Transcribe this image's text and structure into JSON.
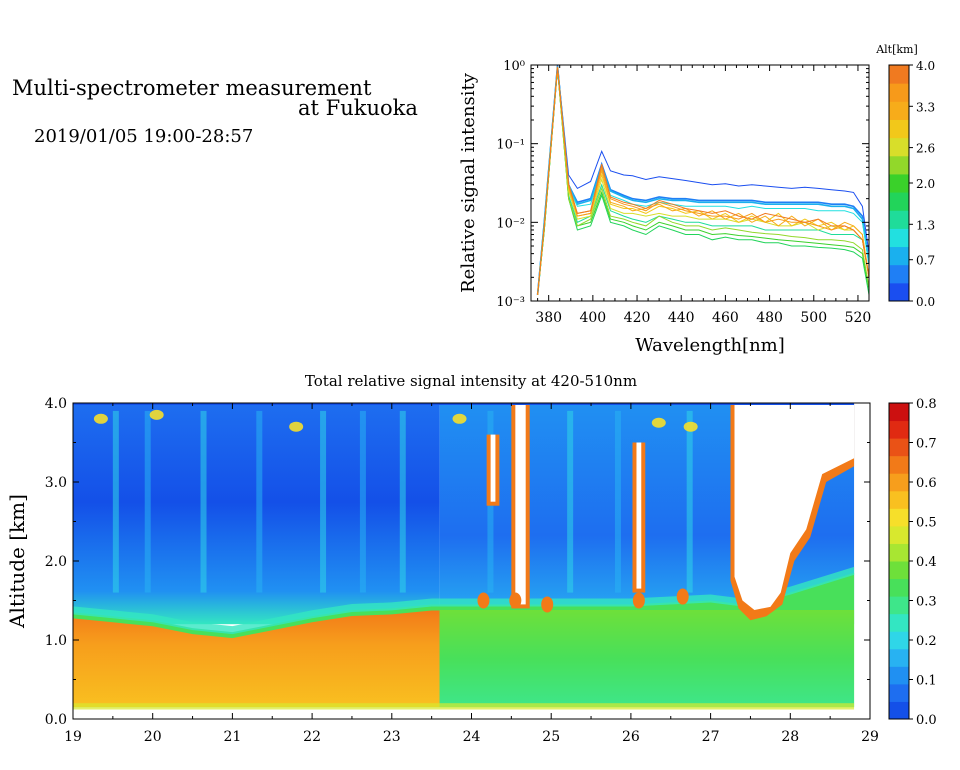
{
  "header": {
    "title_line1": "Multi-spectrometer measurement",
    "title_line2": "at Fukuoka",
    "datetime": "2019/01/05 19:00-28:57"
  },
  "colors": {
    "alt_scale": [
      "#1a4ef0",
      "#1f7ff5",
      "#1ab0ee",
      "#22e0e0",
      "#1fdc9a",
      "#22d45a",
      "#3ad12a",
      "#92d82a",
      "#d8de2a",
      "#f2c81a",
      "#f7ac1a",
      "#f79a1a",
      "#f07a20"
    ],
    "intensity_scale": [
      "#1450e8",
      "#1e6ef0",
      "#2090f2",
      "#28b2f2",
      "#2fd6e8",
      "#33e6c2",
      "#3ee68a",
      "#48e05a",
      "#6ee03a",
      "#a8e632",
      "#d8e82e",
      "#f6df2a",
      "#f9c020",
      "#f79e1c",
      "#f27a18",
      "#ea5216",
      "#e02a12",
      "#cc1010"
    ]
  },
  "chart_data": [
    {
      "type": "line",
      "xlabel": "Wavelength[nm]",
      "ylabel": "Relative signal intensity",
      "xlim": [
        372,
        525
      ],
      "ylim": [
        0.001,
        1
      ],
      "yscale": "log",
      "xticks": [
        380,
        400,
        420,
        440,
        460,
        480,
        500,
        520
      ],
      "yticks": [
        0.001,
        0.01,
        0.1,
        1
      ],
      "ytick_labels": [
        "10⁻³",
        "10⁻²",
        "10⁻¹",
        "10⁰"
      ],
      "x": [
        375,
        378,
        384,
        389,
        393,
        399,
        404,
        408,
        414,
        418,
        424,
        430,
        436,
        442,
        448,
        454,
        460,
        466,
        472,
        478,
        484,
        490,
        496,
        502,
        508,
        514,
        518,
        522,
        525
      ],
      "series": [
        {
          "color": "#1a4ef0",
          "values": [
            0.0012,
            0.01,
            1.0,
            0.04,
            0.027,
            0.033,
            0.08,
            0.045,
            0.04,
            0.039,
            0.035,
            0.038,
            0.036,
            0.034,
            0.032,
            0.03,
            0.031,
            0.029,
            0.03,
            0.029,
            0.028,
            0.027,
            0.028,
            0.027,
            0.026,
            0.025,
            0.024,
            0.016,
            0.004
          ]
        },
        {
          "color": "#1f7ff5",
          "values": [
            0.0012,
            0.01,
            0.98,
            0.03,
            0.018,
            0.02,
            0.055,
            0.026,
            0.022,
            0.02,
            0.019,
            0.021,
            0.02,
            0.02,
            0.019,
            0.019,
            0.019,
            0.019,
            0.019,
            0.018,
            0.018,
            0.018,
            0.018,
            0.018,
            0.017,
            0.017,
            0.016,
            0.012,
            0.003
          ]
        },
        {
          "color": "#1ab0ee",
          "values": [
            0.0012,
            0.01,
            0.96,
            0.03,
            0.017,
            0.019,
            0.052,
            0.025,
            0.021,
            0.019,
            0.018,
            0.02,
            0.019,
            0.019,
            0.018,
            0.018,
            0.018,
            0.018,
            0.018,
            0.017,
            0.017,
            0.017,
            0.017,
            0.017,
            0.016,
            0.016,
            0.015,
            0.011,
            0.003
          ]
        },
        {
          "color": "#22e0e0",
          "values": [
            0.0012,
            0.009,
            0.95,
            0.028,
            0.016,
            0.017,
            0.048,
            0.022,
            0.019,
            0.017,
            0.016,
            0.018,
            0.017,
            0.016,
            0.016,
            0.016,
            0.016,
            0.015,
            0.016,
            0.015,
            0.015,
            0.015,
            0.015,
            0.014,
            0.014,
            0.014,
            0.013,
            0.01,
            0.003
          ]
        },
        {
          "color": "#1fdc9a",
          "values": [
            0.0012,
            0.008,
            0.93,
            0.022,
            0.01,
            0.012,
            0.03,
            0.014,
            0.012,
            0.011,
            0.01,
            0.012,
            0.011,
            0.01,
            0.01,
            0.009,
            0.009,
            0.009,
            0.009,
            0.008,
            0.008,
            0.008,
            0.008,
            0.008,
            0.007,
            0.007,
            0.007,
            0.006,
            0.002
          ]
        },
        {
          "color": "#22d45a",
          "values": [
            0.0012,
            0.008,
            0.92,
            0.02,
            0.008,
            0.009,
            0.022,
            0.01,
            0.009,
            0.008,
            0.007,
            0.009,
            0.008,
            0.007,
            0.007,
            0.006,
            0.0065,
            0.006,
            0.006,
            0.0055,
            0.0055,
            0.005,
            0.005,
            0.0048,
            0.0047,
            0.0045,
            0.0042,
            0.0035,
            0.0012
          ]
        },
        {
          "color": "#3ad12a",
          "values": [
            0.0012,
            0.008,
            0.92,
            0.02,
            0.009,
            0.01,
            0.024,
            0.011,
            0.01,
            0.009,
            0.008,
            0.01,
            0.009,
            0.008,
            0.008,
            0.007,
            0.0072,
            0.0068,
            0.0066,
            0.0063,
            0.006,
            0.0058,
            0.0056,
            0.0054,
            0.0052,
            0.005,
            0.0048,
            0.004,
            0.0014
          ]
        },
        {
          "color": "#92d82a",
          "values": [
            0.0012,
            0.008,
            0.92,
            0.02,
            0.009,
            0.011,
            0.027,
            0.012,
            0.011,
            0.01,
            0.009,
            0.012,
            0.01,
            0.009,
            0.009,
            0.008,
            0.0085,
            0.008,
            0.0075,
            0.0072,
            0.007,
            0.0066,
            0.0064,
            0.006,
            0.006,
            0.0058,
            0.0055,
            0.0045,
            0.0015
          ]
        },
        {
          "color": "#d8de2a",
          "values": [
            0.0012,
            0.009,
            0.93,
            0.025,
            0.011,
            0.012,
            0.035,
            0.015,
            0.013,
            0.013,
            0.012,
            0.013,
            0.012,
            0.012,
            0.011,
            0.011,
            0.011,
            0.01,
            0.011,
            0.01,
            0.009,
            0.009,
            0.01,
            0.008,
            0.009,
            0.008,
            0.008,
            0.006,
            0.002
          ]
        },
        {
          "color": "#f2c81a",
          "values": [
            0.0012,
            0.009,
            0.94,
            0.027,
            0.012,
            0.013,
            0.04,
            0.017,
            0.015,
            0.015,
            0.013,
            0.016,
            0.015,
            0.013,
            0.014,
            0.011,
            0.013,
            0.01,
            0.012,
            0.01,
            0.013,
            0.009,
            0.011,
            0.009,
            0.01,
            0.008,
            0.009,
            0.007,
            0.002
          ]
        },
        {
          "color": "#f7ac1a",
          "values": [
            0.0012,
            0.009,
            0.94,
            0.028,
            0.013,
            0.014,
            0.045,
            0.018,
            0.016,
            0.014,
            0.015,
            0.017,
            0.014,
            0.015,
            0.012,
            0.014,
            0.011,
            0.013,
            0.01,
            0.012,
            0.009,
            0.012,
            0.009,
            0.011,
            0.008,
            0.01,
            0.009,
            0.007,
            0.002
          ]
        },
        {
          "color": "#f79a1a",
          "values": [
            0.0012,
            0.009,
            0.95,
            0.03,
            0.012,
            0.013,
            0.05,
            0.02,
            0.017,
            0.016,
            0.014,
            0.018,
            0.016,
            0.014,
            0.013,
            0.012,
            0.012,
            0.011,
            0.013,
            0.01,
            0.011,
            0.01,
            0.01,
            0.009,
            0.008,
            0.009,
            0.008,
            0.006,
            0.002
          ]
        },
        {
          "color": "#f07a20",
          "values": [
            0.0012,
            0.009,
            0.95,
            0.031,
            0.013,
            0.014,
            0.055,
            0.021,
            0.018,
            0.017,
            0.015,
            0.019,
            0.017,
            0.015,
            0.014,
            0.013,
            0.014,
            0.012,
            0.011,
            0.013,
            0.012,
            0.011,
            0.01,
            0.011,
            0.009,
            0.009,
            0.008,
            0.006,
            0.002
          ]
        }
      ],
      "colorbar": {
        "label": "Alt[km]",
        "ticks": [
          0.0,
          0.7,
          1.3,
          2.0,
          2.6,
          3.3,
          4.0
        ],
        "tick_labels": [
          "0.0",
          "0.7",
          "1.3",
          "2.0",
          "2.6",
          "3.3",
          "4.0"
        ]
      }
    },
    {
      "type": "heatmap",
      "title": "Total relative signal intensity at 420-510nm",
      "ylabel": "Altitude [km]",
      "xlim": [
        19,
        29
      ],
      "ylim": [
        0,
        4
      ],
      "xticks": [
        19,
        20,
        21,
        22,
        23,
        24,
        25,
        26,
        27,
        28,
        29
      ],
      "yticks": [
        0.0,
        1.0,
        2.0,
        3.0,
        4.0
      ],
      "ytick_labels": [
        "0.0",
        "1.0",
        "2.0",
        "3.0",
        "4.0"
      ],
      "boundary_layer": {
        "x": [
          19.0,
          19.5,
          20.0,
          20.5,
          21.0,
          21.5,
          22.0,
          22.5,
          23.0,
          23.5,
          24.0,
          25.0,
          26.0,
          27.0,
          27.4,
          28.0,
          28.8
        ],
        "top_km": [
          1.35,
          1.3,
          1.25,
          1.15,
          1.1,
          1.2,
          1.3,
          1.38,
          1.4,
          1.45,
          1.45,
          1.45,
          1.45,
          1.5,
          1.45,
          1.6,
          1.85
        ]
      },
      "segments": [
        {
          "from": 19.0,
          "to": 23.6,
          "lower_value": 0.55,
          "upper_value": 0.08
        },
        {
          "from": 23.6,
          "to": 27.3,
          "lower_value": 0.3,
          "upper_value": 0.12
        },
        {
          "from": 27.3,
          "to": 28.8,
          "lower_value": 0.28,
          "upper_value": 0.2
        }
      ],
      "colorbar": {
        "ticks": [
          0.0,
          0.1,
          0.2,
          0.3,
          0.4,
          0.5,
          0.6,
          0.7,
          0.8
        ],
        "tick_labels": [
          "0.0",
          "0.1",
          "0.2",
          "0.3",
          "0.4",
          "0.5",
          "0.6",
          "0.7",
          "0.8"
        ]
      }
    }
  ]
}
